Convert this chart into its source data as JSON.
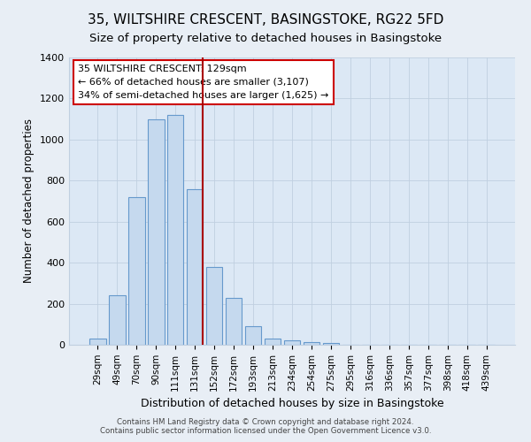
{
  "title": "35, WILTSHIRE CRESCENT, BASINGSTOKE, RG22 5FD",
  "subtitle": "Size of property relative to detached houses in Basingstoke",
  "xlabel": "Distribution of detached houses by size in Basingstoke",
  "ylabel": "Number of detached properties",
  "bar_labels": [
    "29sqm",
    "49sqm",
    "70sqm",
    "90sqm",
    "111sqm",
    "131sqm",
    "152sqm",
    "172sqm",
    "193sqm",
    "213sqm",
    "234sqm",
    "254sqm",
    "275sqm",
    "295sqm",
    "316sqm",
    "336sqm",
    "357sqm",
    "377sqm",
    "398sqm",
    "418sqm",
    "439sqm"
  ],
  "bar_values": [
    30,
    240,
    720,
    1100,
    1120,
    760,
    380,
    230,
    90,
    30,
    20,
    15,
    10,
    0,
    0,
    0,
    0,
    0,
    0,
    0,
    0
  ],
  "bar_color": "#c5d9ee",
  "bar_edge_color": "#6699cc",
  "marker_line_color": "#aa0000",
  "annotation_line1": "35 WILTSHIRE CRESCENT: 129sqm",
  "annotation_line2": "← 66% of detached houses are smaller (3,107)",
  "annotation_line3": "34% of semi-detached houses are larger (1,625) →",
  "annotation_box_edge_color": "#cc0000",
  "ylim": [
    0,
    1400
  ],
  "yticks": [
    0,
    200,
    400,
    600,
    800,
    1000,
    1200,
    1400
  ],
  "footer_line1": "Contains HM Land Registry data © Crown copyright and database right 2024.",
  "footer_line2": "Contains public sector information licensed under the Open Government Licence v3.0.",
  "background_color": "#e8eef5",
  "plot_background_color": "#dce8f5",
  "grid_color": "#c0cfe0",
  "title_fontsize": 11,
  "subtitle_fontsize": 9.5
}
